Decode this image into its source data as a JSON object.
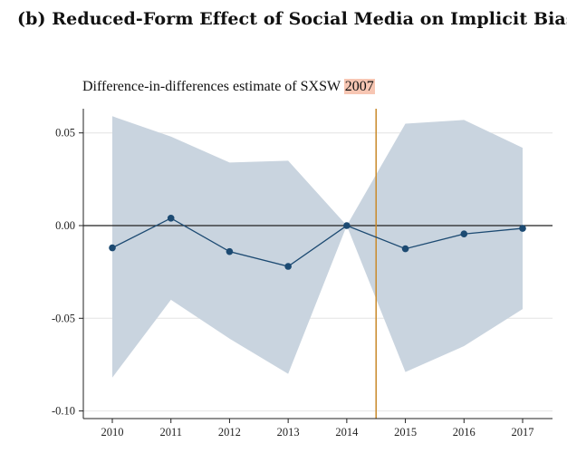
{
  "title": "(b) Reduced-Form Effect of Social Media on Implicit Bias",
  "subtitle_prefix": "Difference-in-differences estimate of SXSW",
  "subtitle_highlight": "2007",
  "colors": {
    "ci_band": "#c9d4df",
    "line": "#1c4a72",
    "marker": "#1c4a72",
    "zero_line": "#222222",
    "vertical_line": "#c98a2a",
    "highlight": "#f7c6b3",
    "grid": "#e4e4e4"
  },
  "chart_data": {
    "type": "line",
    "x": [
      2010,
      2011,
      2012,
      2013,
      2014,
      2015,
      2016,
      2017
    ],
    "x_tick_labels": [
      "2010",
      "2011",
      "2012",
      "2013",
      "2014",
      "2015",
      "2016",
      "2017"
    ],
    "series": [
      {
        "values": [
          -0.012,
          0.004,
          -0.014,
          -0.022,
          0.0,
          -0.0125,
          -0.0045,
          -0.0015
        ]
      }
    ],
    "ci_upper": [
      0.059,
      0.048,
      0.034,
      0.035,
      0.0,
      0.055,
      0.057,
      0.042
    ],
    "ci_lower": [
      -0.082,
      -0.04,
      -0.061,
      -0.08,
      0.0,
      -0.079,
      -0.065,
      -0.045
    ],
    "reference_vertical_x": 2014.5,
    "reference_horizontal_y": 0,
    "y_ticks": [
      0.05,
      0.0,
      -0.05,
      -0.1
    ],
    "y_tick_labels": [
      "0.05",
      "0.00",
      "-0.05",
      "-0.10"
    ],
    "xlim": [
      2009.5,
      2017.5
    ],
    "ylim": [
      -0.104,
      0.062
    ],
    "grid": true
  }
}
